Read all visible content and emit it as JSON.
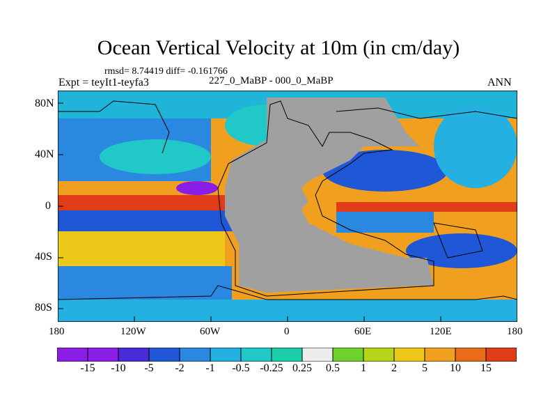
{
  "title": "Ocean Vertical Velocity at 10m (in cm/day)",
  "stats": "rmsd= 8.74419 diff= -0.161766",
  "experiment": "Expt = teyIt1-teyfa3",
  "period": "227_0_MaBP - 000_0_MaBP",
  "season": "ANN",
  "map": {
    "lat_labels": [
      "80N",
      "40N",
      "0",
      "40S",
      "80S"
    ],
    "lon_labels": [
      "180",
      "120W",
      "60W",
      "0",
      "60E",
      "120E",
      "180"
    ],
    "land_color": "#a0a0a0"
  },
  "colorbar": {
    "labels": [
      "-15",
      "-10",
      "-5",
      "-2",
      "-1",
      "-0.5",
      "-0.25",
      "0.25",
      "0.5",
      "1",
      "2",
      "5",
      "10",
      "15"
    ],
    "colors": [
      "#8a1ee6",
      "#4a2bd8",
      "#1f57d6",
      "#2b88e0",
      "#24b0e0",
      "#20c8c8",
      "#1ccdaa",
      "#ececec",
      "#6fd12c",
      "#b8d418",
      "#ecc81a",
      "#f0a01e",
      "#ea6c1a",
      "#e03c18"
    ]
  }
}
